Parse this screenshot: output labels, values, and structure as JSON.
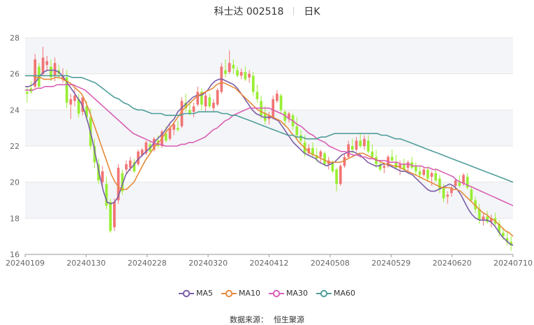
{
  "header": {
    "title": "科士达 002518",
    "period": "日K"
  },
  "footer": {
    "source_label": "数据来源：",
    "source_name": "恒生聚源"
  },
  "chart_data": {
    "type": "candlestick",
    "title": "科士达 002518",
    "subtitle": "日K",
    "ylim": [
      16,
      28
    ],
    "yticks": [
      16,
      18,
      20,
      22,
      24,
      26,
      28
    ],
    "xticks": [
      "20240109",
      "20240130",
      "20240228",
      "20240320",
      "20240412",
      "20240508",
      "20240529",
      "20240620",
      "20240710"
    ],
    "xtick_index": [
      0,
      21,
      42,
      63,
      84,
      105,
      126,
      147,
      168
    ],
    "grid": true,
    "legend_position": "bottom",
    "colors": {
      "up": "#f27474",
      "down": "#99ee33",
      "MA5": "#7b5ea7",
      "MA10": "#e58a3b",
      "MA30": "#d85fb4",
      "MA60": "#4f9e9a",
      "band": "#f4f5f8",
      "grid": "#e6e6e6",
      "axis": "#999999"
    },
    "candles_ohlc": [
      [
        25.0,
        25.3,
        24.4,
        24.9
      ],
      [
        25.2,
        25.6,
        24.9,
        25.0
      ],
      [
        25.3,
        27.1,
        25.2,
        26.8
      ],
      [
        26.4,
        26.6,
        25.2,
        25.3
      ],
      [
        26.0,
        27.5,
        25.9,
        26.9
      ],
      [
        26.5,
        27.0,
        26.2,
        26.7
      ],
      [
        26.4,
        26.8,
        25.6,
        25.8
      ],
      [
        25.9,
        26.9,
        25.6,
        26.6
      ],
      [
        26.2,
        26.5,
        25.7,
        26.0
      ],
      [
        25.7,
        26.3,
        25.5,
        25.9
      ],
      [
        25.8,
        26.2,
        24.1,
        24.4
      ],
      [
        24.3,
        24.9,
        23.5,
        24.6
      ],
      [
        24.5,
        25.2,
        24.2,
        24.8
      ],
      [
        24.6,
        24.9,
        23.6,
        23.8
      ],
      [
        23.9,
        24.8,
        23.7,
        24.7
      ],
      [
        24.2,
        24.5,
        23.4,
        23.6
      ],
      [
        23.6,
        24.1,
        21.8,
        22.0
      ],
      [
        22.0,
        22.4,
        20.8,
        21.1
      ],
      [
        21.0,
        21.3,
        19.9,
        20.1
      ],
      [
        20.0,
        20.9,
        19.8,
        20.6
      ],
      [
        19.9,
        20.3,
        18.5,
        18.7
      ],
      [
        18.9,
        19.1,
        17.2,
        17.3
      ],
      [
        17.5,
        19.1,
        17.3,
        18.9
      ],
      [
        19.0,
        21.0,
        18.8,
        20.8
      ],
      [
        20.5,
        20.7,
        19.3,
        19.5
      ],
      [
        20.7,
        21.2,
        20.5,
        21.0
      ],
      [
        20.8,
        21.4,
        20.6,
        21.2
      ],
      [
        21.1,
        21.3,
        20.5,
        20.6
      ],
      [
        21.0,
        21.8,
        20.9,
        21.7
      ],
      [
        21.5,
        21.9,
        21.4,
        21.8
      ],
      [
        21.6,
        22.3,
        21.5,
        22.2
      ],
      [
        22.1,
        22.3,
        21.6,
        21.7
      ],
      [
        21.8,
        22.5,
        21.7,
        22.4
      ],
      [
        22.3,
        22.6,
        21.9,
        22.0
      ],
      [
        22.0,
        22.9,
        21.9,
        22.8
      ],
      [
        22.7,
        23.1,
        22.2,
        22.3
      ],
      [
        22.4,
        23.2,
        22.3,
        23.0
      ],
      [
        22.9,
        23.3,
        22.6,
        23.2
      ],
      [
        23.0,
        23.4,
        22.8,
        22.9
      ],
      [
        23.1,
        24.7,
        23.0,
        24.5
      ],
      [
        24.4,
        24.9,
        23.9,
        24.1
      ],
      [
        24.0,
        24.5,
        23.7,
        23.8
      ],
      [
        23.9,
        24.4,
        23.6,
        24.2
      ],
      [
        24.3,
        25.3,
        24.2,
        25.0
      ],
      [
        25.0,
        25.2,
        24.0,
        24.3
      ],
      [
        24.2,
        25.0,
        23.9,
        24.8
      ],
      [
        24.7,
        24.9,
        24.1,
        24.2
      ],
      [
        24.1,
        24.6,
        23.9,
        24.4
      ],
      [
        24.3,
        25.2,
        24.2,
        25.1
      ],
      [
        25.0,
        26.6,
        24.9,
        26.4
      ],
      [
        26.2,
        26.8,
        25.8,
        26.0
      ],
      [
        26.1,
        27.3,
        26.0,
        26.6
      ],
      [
        26.5,
        26.8,
        26.0,
        26.3
      ],
      [
        26.2,
        26.4,
        25.8,
        25.9
      ],
      [
        25.9,
        26.3,
        25.7,
        26.1
      ],
      [
        26.1,
        26.4,
        25.6,
        25.7
      ],
      [
        25.8,
        26.2,
        25.5,
        26.0
      ],
      [
        25.9,
        26.1,
        24.8,
        25.0
      ],
      [
        25.0,
        25.4,
        24.4,
        24.6
      ],
      [
        24.5,
        24.8,
        23.5,
        23.7
      ],
      [
        23.8,
        24.2,
        23.2,
        23.4
      ],
      [
        23.5,
        23.9,
        23.2,
        23.7
      ],
      [
        23.6,
        24.8,
        23.5,
        24.6
      ],
      [
        24.5,
        25.1,
        24.4,
        24.9
      ],
      [
        24.8,
        24.9,
        23.8,
        24.0
      ],
      [
        23.9,
        24.0,
        23.2,
        23.4
      ],
      [
        23.5,
        23.9,
        23.3,
        23.8
      ],
      [
        23.7,
        23.8,
        22.9,
        23.1
      ],
      [
        23.1,
        23.6,
        22.4,
        22.6
      ],
      [
        22.6,
        22.9,
        22.1,
        22.3
      ],
      [
        22.2,
        22.6,
        21.4,
        21.6
      ],
      [
        21.6,
        22.1,
        21.5,
        21.9
      ],
      [
        21.9,
        22.2,
        21.4,
        21.5
      ],
      [
        21.5,
        21.9,
        21.1,
        21.3
      ],
      [
        21.4,
        21.8,
        21.1,
        21.7
      ],
      [
        21.6,
        21.7,
        20.9,
        21.0
      ],
      [
        21.0,
        21.4,
        20.7,
        21.2
      ],
      [
        21.1,
        21.2,
        20.5,
        20.6
      ],
      [
        20.7,
        20.8,
        19.5,
        19.9
      ],
      [
        19.9,
        21.0,
        19.8,
        20.9
      ],
      [
        20.9,
        21.6,
        20.8,
        21.4
      ],
      [
        21.4,
        22.3,
        21.3,
        22.1
      ],
      [
        22.0,
        22.4,
        21.6,
        21.8
      ],
      [
        21.8,
        22.5,
        21.7,
        22.3
      ],
      [
        22.3,
        22.7,
        21.9,
        22.0
      ],
      [
        22.0,
        22.6,
        21.8,
        22.4
      ],
      [
        22.3,
        22.6,
        21.6,
        21.7
      ],
      [
        21.7,
        22.1,
        21.3,
        21.4
      ],
      [
        21.4,
        21.8,
        20.8,
        21.0
      ],
      [
        21.0,
        21.2,
        20.6,
        20.7
      ],
      [
        20.8,
        21.1,
        20.5,
        20.9
      ],
      [
        20.9,
        21.5,
        20.8,
        21.4
      ],
      [
        21.4,
        21.8,
        21.1,
        21.2
      ],
      [
        21.1,
        21.5,
        20.7,
        20.8
      ],
      [
        20.8,
        21.2,
        20.4,
        21.0
      ],
      [
        21.0,
        21.3,
        20.6,
        20.7
      ],
      [
        20.8,
        21.2,
        20.5,
        21.1
      ],
      [
        21.1,
        21.4,
        20.7,
        20.8
      ],
      [
        20.9,
        21.1,
        20.4,
        20.6
      ],
      [
        20.6,
        20.9,
        20.2,
        20.4
      ],
      [
        20.4,
        20.8,
        20.3,
        20.7
      ],
      [
        20.7,
        20.9,
        20.1,
        20.2
      ],
      [
        20.3,
        20.6,
        19.8,
        20.5
      ],
      [
        20.5,
        20.8,
        20.0,
        20.1
      ],
      [
        20.2,
        20.4,
        19.4,
        19.6
      ],
      [
        19.7,
        19.9,
        18.9,
        19.1
      ],
      [
        19.2,
        19.5,
        18.8,
        19.3
      ],
      [
        19.4,
        19.8,
        19.2,
        19.7
      ],
      [
        19.8,
        20.2,
        19.6,
        20.1
      ],
      [
        20.0,
        20.4,
        19.7,
        19.8
      ],
      [
        19.9,
        20.5,
        19.8,
        20.4
      ],
      [
        20.3,
        20.5,
        19.6,
        19.7
      ],
      [
        19.6,
        19.8,
        18.9,
        19.0
      ],
      [
        19.0,
        19.2,
        18.3,
        18.5
      ],
      [
        18.5,
        18.8,
        17.7,
        17.9
      ],
      [
        17.9,
        18.3,
        17.6,
        18.1
      ],
      [
        18.1,
        18.4,
        17.7,
        17.8
      ],
      [
        17.8,
        18.2,
        17.5,
        18.0
      ],
      [
        18.0,
        18.3,
        17.6,
        17.7
      ],
      [
        17.7,
        17.9,
        17.0,
        17.2
      ],
      [
        17.2,
        17.5,
        16.8,
        17.0
      ],
      [
        16.9,
        17.3,
        16.5,
        16.7
      ],
      [
        16.7,
        17.0,
        16.2,
        16.5
      ]
    ],
    "series": [
      {
        "name": "MA5",
        "values": [
          25.3,
          25.3,
          25.4,
          25.6,
          25.9,
          26.1,
          26.2,
          26.2,
          26.2,
          26.1,
          25.9,
          25.6,
          25.3,
          25.0,
          24.7,
          24.4,
          23.9,
          23.2,
          22.4,
          21.4,
          20.4,
          19.5,
          18.9,
          18.8,
          18.9,
          19.2,
          19.8,
          20.4,
          20.7,
          20.9,
          21.2,
          21.4,
          21.6,
          21.8,
          22.0,
          22.3,
          22.5,
          22.7,
          23.0,
          23.3,
          23.5,
          23.9,
          24.1,
          24.3,
          24.5,
          24.7,
          24.8,
          24.8,
          24.9,
          25.1,
          25.4,
          25.6,
          25.7,
          25.7,
          25.6,
          25.5,
          25.4,
          25.2,
          24.9,
          24.6,
          24.3,
          24.0,
          23.8,
          23.7,
          23.6,
          23.6,
          23.6,
          23.5,
          23.4,
          23.1,
          22.8,
          22.5,
          22.2,
          22.0,
          21.8,
          21.6,
          21.5,
          21.4,
          21.3,
          21.1,
          21.0,
          20.9,
          21.0,
          21.1,
          21.3,
          21.5,
          21.6,
          21.7,
          21.7,
          21.6,
          21.5,
          21.3,
          21.1,
          21.0,
          20.9,
          20.9,
          21.0,
          21.0,
          20.9,
          20.8,
          20.7,
          20.6,
          20.6,
          20.5,
          20.4,
          20.2,
          20.0,
          19.8,
          19.6,
          19.5,
          19.5,
          19.6,
          19.7,
          19.8,
          19.9,
          19.8,
          19.6,
          19.3,
          18.9,
          18.5,
          18.2,
          18.0,
          17.9,
          17.9,
          17.9,
          17.8,
          17.6,
          17.3,
          17.0,
          16.8,
          16.6,
          16.5
        ]
      },
      {
        "name": "MA10",
        "values": [
          25.9,
          25.9,
          25.9,
          25.8,
          25.8,
          25.7,
          25.7,
          25.7,
          25.8,
          25.8,
          25.7,
          25.6,
          25.5,
          25.3,
          25.1,
          24.9,
          24.5,
          24.0,
          23.4,
          22.8,
          22.2,
          21.6,
          21.0,
          20.4,
          20.0,
          19.7,
          19.6,
          19.6,
          19.8,
          20.0,
          20.4,
          20.8,
          21.2,
          21.5,
          21.8,
          22.1,
          22.3,
          22.6,
          22.9,
          23.1,
          23.4,
          23.7,
          24.0,
          24.2,
          24.4,
          24.6,
          24.8,
          24.9,
          25.0,
          25.1,
          25.2,
          25.4,
          25.5,
          25.5,
          25.4,
          25.3,
          25.2,
          25.0,
          24.8,
          24.6,
          24.4,
          24.2,
          24.0,
          23.9,
          23.8,
          23.7,
          23.6,
          23.5,
          23.4,
          23.2,
          23.0,
          22.7,
          22.5,
          22.2,
          22.0,
          21.8,
          21.6,
          21.5,
          21.4,
          21.3,
          21.2,
          21.1,
          21.1,
          21.1,
          21.1,
          21.2,
          21.3,
          21.4,
          21.5,
          21.6,
          21.6,
          21.5,
          21.4,
          21.3,
          21.2,
          21.1,
          21.0,
          21.0,
          20.9,
          20.9,
          20.8,
          20.7,
          20.6,
          20.5,
          20.4,
          20.3,
          20.2,
          20.1,
          20.0,
          19.9,
          19.8,
          19.7,
          19.7,
          19.7,
          19.6,
          19.6,
          19.5,
          19.3,
          19.1,
          18.9,
          18.7,
          18.5,
          18.3,
          18.2,
          18.0,
          17.9,
          17.7,
          17.5,
          17.3,
          17.2,
          17.0
        ]
      },
      {
        "name": "MA30",
        "values": [
          25.1,
          25.1,
          25.1,
          25.2,
          25.2,
          25.3,
          25.3,
          25.3,
          25.4,
          25.4,
          25.4,
          25.4,
          25.4,
          25.3,
          25.2,
          25.1,
          24.9,
          24.7,
          24.5,
          24.3,
          24.1,
          23.9,
          23.7,
          23.5,
          23.3,
          23.1,
          22.9,
          22.7,
          22.6,
          22.5,
          22.4,
          22.3,
          22.2,
          22.1,
          22.1,
          22.0,
          22.0,
          22.0,
          22.0,
          22.1,
          22.1,
          22.2,
          22.2,
          22.3,
          22.4,
          22.5,
          22.7,
          22.9,
          23.0,
          23.2,
          23.4,
          23.5,
          23.7,
          23.8,
          23.9,
          24.0,
          24.1,
          24.1,
          24.1,
          24.1,
          24.1,
          24.1,
          24.0,
          23.9,
          23.8,
          23.7,
          23.5,
          23.4,
          23.2,
          23.1,
          22.9,
          22.7,
          22.6,
          22.4,
          22.3,
          22.2,
          22.0,
          21.9,
          21.8,
          21.7,
          21.7,
          21.6,
          21.5,
          21.5,
          21.4,
          21.4,
          21.3,
          21.3,
          21.2,
          21.2,
          21.2,
          21.1,
          21.1,
          21.1,
          21.0,
          21.0,
          21.0,
          20.9,
          20.9,
          20.9,
          20.8,
          20.8,
          20.7,
          20.7,
          20.6,
          20.5,
          20.4,
          20.3,
          20.1,
          20.0,
          19.9,
          19.8,
          19.7,
          19.6,
          19.5,
          19.4,
          19.3,
          19.2,
          19.1,
          19.0,
          18.9,
          18.8,
          18.7
        ]
      },
      {
        "name": "MA60",
        "values": [
          25.9,
          25.9,
          25.9,
          25.9,
          25.9,
          25.9,
          25.9,
          25.9,
          25.9,
          25.9,
          25.8,
          25.8,
          25.8,
          25.7,
          25.6,
          25.5,
          25.3,
          25.1,
          24.9,
          24.7,
          24.6,
          24.4,
          24.3,
          24.1,
          24.0,
          24.0,
          23.9,
          23.8,
          23.8,
          23.8,
          23.7,
          23.7,
          23.7,
          23.7,
          23.8,
          23.8,
          23.8,
          23.9,
          23.9,
          23.9,
          23.9,
          23.9,
          23.8,
          23.8,
          23.7,
          23.7,
          23.6,
          23.5,
          23.4,
          23.3,
          23.2,
          23.1,
          23.0,
          22.9,
          22.8,
          22.7,
          22.6,
          22.6,
          22.5,
          22.5,
          22.4,
          22.4,
          22.4,
          22.5,
          22.5,
          22.6,
          22.7,
          22.7,
          22.7,
          22.7,
          22.7,
          22.7,
          22.7,
          22.7,
          22.7,
          22.7,
          22.6,
          22.6,
          22.5,
          22.4,
          22.4,
          22.3,
          22.2,
          22.1,
          22.0,
          21.9,
          21.8,
          21.7,
          21.6,
          21.5,
          21.4,
          21.3,
          21.2,
          21.1,
          21.0,
          20.9,
          20.8,
          20.7,
          20.6,
          20.5,
          20.4,
          20.3,
          20.2,
          20.1,
          20.0
        ]
      }
    ]
  }
}
